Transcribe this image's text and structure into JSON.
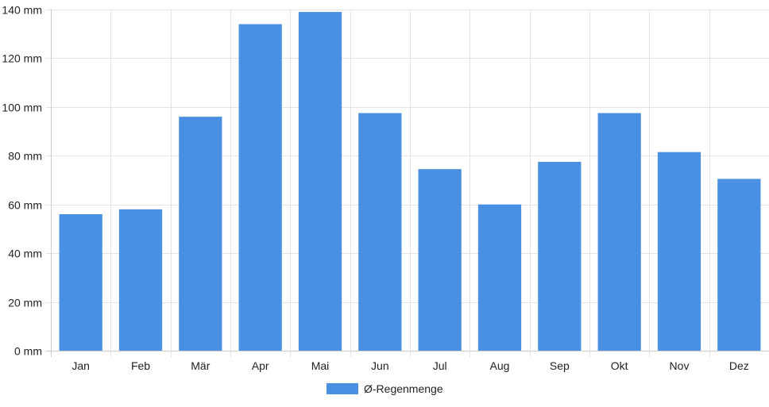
{
  "chart_data": {
    "type": "bar",
    "categories": [
      "Jan",
      "Feb",
      "Mär",
      "Apr",
      "Mai",
      "Jun",
      "Jul",
      "Aug",
      "Sep",
      "Okt",
      "Nov",
      "Dez"
    ],
    "series": [
      {
        "name": "Ø-Regenmenge",
        "values": [
          56,
          58,
          96,
          134,
          139,
          97.5,
          74.5,
          60,
          77.5,
          97.5,
          81.5,
          70.5
        ],
        "color": "#4a90e2"
      }
    ],
    "unit": "mm",
    "ylim": [
      0,
      140
    ],
    "yticks": [
      0,
      20,
      40,
      60,
      80,
      100,
      120,
      140
    ],
    "ytick_labels": [
      "0 mm",
      "20 mm",
      "40 mm",
      "60 mm",
      "80 mm",
      "100 mm",
      "120 mm",
      "140 mm"
    ],
    "grid": true,
    "legend_position": "bottom-center",
    "colors": {
      "bar": "#4a90e2",
      "grid": "#e3e3e3",
      "axis": "#cccccc",
      "text": "#222222"
    }
  }
}
